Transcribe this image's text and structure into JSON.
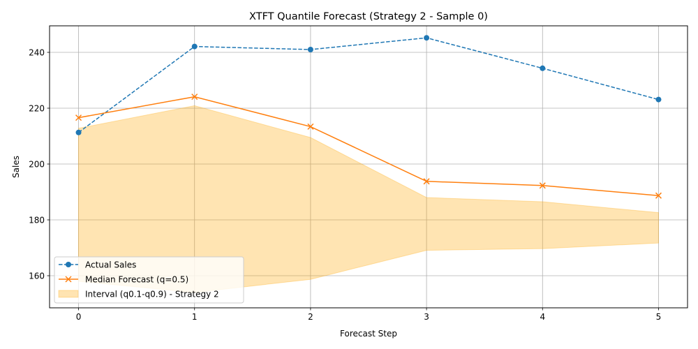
{
  "chart_data": {
    "type": "line",
    "title": "XTFT Quantile Forecast (Strategy 2 - Sample 0)",
    "xlabel": "Forecast Step",
    "ylabel": "Sales",
    "x": [
      0,
      1,
      2,
      3,
      4,
      5
    ],
    "xlim": [
      -0.25,
      5.25
    ],
    "ylim": [
      148.5,
      249.5
    ],
    "xticks": [
      0,
      1,
      2,
      3,
      4,
      5
    ],
    "yticks": [
      160,
      180,
      200,
      220,
      240
    ],
    "grid": true,
    "legend_position": "lower-left",
    "series": [
      {
        "name": "Actual Sales",
        "values": [
          211.3,
          242.1,
          241.0,
          245.2,
          234.3,
          223.1
        ],
        "color": "#1f77b4",
        "line_style": "dashed",
        "marker": "circle"
      },
      {
        "name": "Median Forecast (q=0.5)",
        "values": [
          216.6,
          224.1,
          213.4,
          193.8,
          192.3,
          188.7
        ],
        "color": "#ff7f0e",
        "line_style": "solid",
        "marker": "x"
      }
    ],
    "interval": {
      "name": "Interval (q0.1-q0.9) - Strategy 2",
      "lower": [
        158.0,
        154.0,
        158.7,
        169.1,
        169.7,
        171.7
      ],
      "upper": [
        212.8,
        220.9,
        209.5,
        188.0,
        186.5,
        182.6
      ],
      "color": "#ffa500"
    }
  }
}
